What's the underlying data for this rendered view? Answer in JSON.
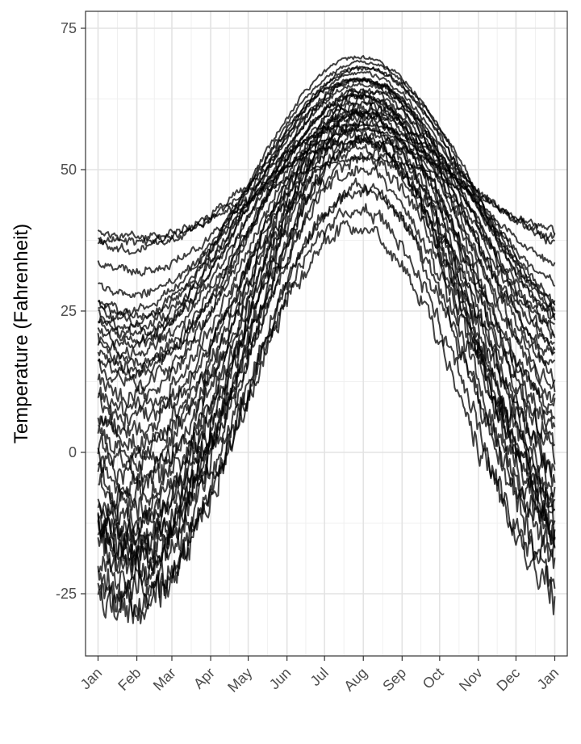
{
  "chart_data": {
    "type": "line",
    "title": "",
    "xlabel": "",
    "ylabel": "Temperature (Fahrenheit)",
    "y_ticks": [
      -25,
      0,
      25,
      50,
      75
    ],
    "y_tick_labels": [
      "-25",
      "0",
      "25",
      "50",
      "75"
    ],
    "ylim": [
      -36,
      78
    ],
    "x_ticks": [
      "Jan",
      "Feb",
      "Mar",
      "Apr",
      "May",
      "Jun",
      "Jul",
      "Aug",
      "Sep",
      "Oct",
      "Nov",
      "Dec",
      "Jan"
    ],
    "x_tick_days": [
      1,
      32,
      60,
      91,
      121,
      152,
      182,
      213,
      244,
      274,
      305,
      335,
      366
    ],
    "xlim": [
      -9,
      376
    ],
    "grid": true,
    "line_color": "#000000",
    "line_opacity": 0.75,
    "series_note_count": 40,
    "series": [
      {
        "min": 38,
        "max": 52,
        "peak": 215
      },
      {
        "min": 37,
        "max": 55,
        "peak": 212
      },
      {
        "min": 36,
        "max": 58,
        "peak": 210
      },
      {
        "min": 32,
        "max": 57,
        "peak": 213
      },
      {
        "min": 28,
        "max": 60,
        "peak": 212
      },
      {
        "min": 25,
        "max": 66,
        "peak": 208
      },
      {
        "min": 24,
        "max": 69,
        "peak": 212
      },
      {
        "min": 23,
        "max": 70,
        "peak": 210
      },
      {
        "min": 22,
        "max": 68,
        "peak": 212
      },
      {
        "min": 21,
        "max": 67,
        "peak": 211
      },
      {
        "min": 20,
        "max": 68,
        "peak": 213
      },
      {
        "min": 19,
        "max": 66,
        "peak": 210
      },
      {
        "min": 18,
        "max": 65,
        "peak": 212
      },
      {
        "min": 16,
        "max": 66,
        "peak": 212
      },
      {
        "min": 15,
        "max": 64,
        "peak": 213
      },
      {
        "min": 14,
        "max": 63,
        "peak": 210
      },
      {
        "min": 12,
        "max": 64,
        "peak": 212
      },
      {
        "min": 10,
        "max": 66,
        "peak": 211
      },
      {
        "min": 8,
        "max": 63,
        "peak": 212
      },
      {
        "min": 6,
        "max": 62,
        "peak": 213
      },
      {
        "min": 4,
        "max": 60,
        "peak": 210
      },
      {
        "min": 2,
        "max": 63,
        "peak": 212
      },
      {
        "min": 0,
        "max": 61,
        "peak": 212
      },
      {
        "min": -2,
        "max": 60,
        "peak": 211
      },
      {
        "min": -4,
        "max": 62,
        "peak": 213
      },
      {
        "min": -6,
        "max": 58,
        "peak": 210
      },
      {
        "min": -8,
        "max": 60,
        "peak": 212
      },
      {
        "min": -10,
        "max": 59,
        "peak": 212
      },
      {
        "min": -12,
        "max": 57,
        "peak": 211
      },
      {
        "min": -13,
        "max": 58,
        "peak": 212
      },
      {
        "min": -15,
        "max": 56,
        "peak": 210
      },
      {
        "min": -16,
        "max": 55,
        "peak": 213
      },
      {
        "min": -17,
        "max": 55,
        "peak": 212
      },
      {
        "min": -18,
        "max": 54,
        "peak": 211
      },
      {
        "min": -19,
        "max": 52,
        "peak": 212
      },
      {
        "min": -20,
        "max": 50,
        "peak": 210
      },
      {
        "min": -22,
        "max": 46,
        "peak": 210
      },
      {
        "min": -25,
        "max": 47,
        "peak": 212
      },
      {
        "min": -27,
        "max": 43,
        "peak": 208
      },
      {
        "min": -28,
        "max": 40,
        "peak": 206
      }
    ]
  }
}
